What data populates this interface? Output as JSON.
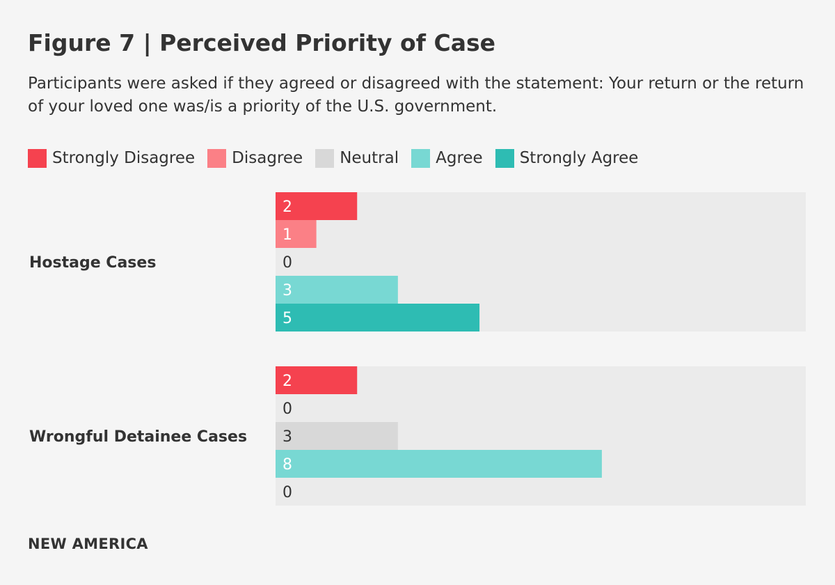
{
  "header": {
    "title": "Figure 7 | Perceived Priority of Case",
    "subtitle": "Participants were asked if they agreed or disagreed with the statement: Your return or the return of your loved one was/is a priority of the U.S. government."
  },
  "footer": {
    "brand": "NEW AMERICA"
  },
  "colors": {
    "Strongly Disagree": "#f5424f",
    "Disagree": "#fb8086",
    "Neutral": "#d8d8d8",
    "Agree": "#78d8d3",
    "Strongly Agree": "#2ebcb3",
    "track": "#ebebeb",
    "text": "#333333"
  },
  "chart_data": {
    "type": "bar",
    "orientation": "horizontal",
    "title": "Figure 7 | Perceived Priority of Case",
    "subtitle": "Participants were asked if they agreed or disagreed with the statement: Your return or the return of your loved one was/is a priority of the U.S. government.",
    "categories": [
      "Hostage Cases",
      "Wrongful Detainee Cases"
    ],
    "series": [
      {
        "name": "Strongly Disagree",
        "values": [
          2,
          2
        ]
      },
      {
        "name": "Disagree",
        "values": [
          1,
          0
        ]
      },
      {
        "name": "Neutral",
        "values": [
          0,
          3
        ]
      },
      {
        "name": "Agree",
        "values": [
          3,
          8
        ]
      },
      {
        "name": "Strongly Agree",
        "values": [
          5,
          0
        ]
      }
    ],
    "xlim": [
      0,
      13
    ],
    "legend_position": "top-left",
    "grid": false,
    "data_labels": true,
    "xlabel": "",
    "ylabel": ""
  }
}
